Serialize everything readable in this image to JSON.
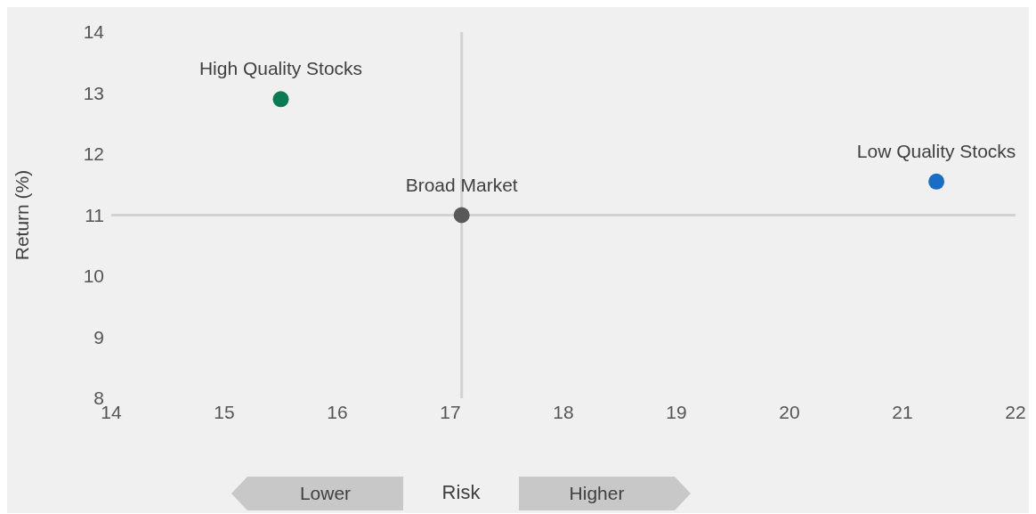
{
  "chart_data": {
    "type": "scatter",
    "xlabel": "Risk",
    "ylabel": "Return (%)",
    "xlim": [
      14,
      22
    ],
    "xticks": [
      14,
      15,
      16,
      17,
      18,
      19,
      20,
      21,
      22
    ],
    "ylim": [
      8,
      14
    ],
    "yticks": [
      8,
      9,
      10,
      11,
      12,
      13,
      14
    ],
    "series": [
      {
        "name": "High Quality Stocks",
        "color": "#0b7a52",
        "x": [
          15.5
        ],
        "values": [
          12.9
        ]
      },
      {
        "name": "Broad Market",
        "color": "#595959",
        "x": [
          17.1
        ],
        "values": [
          11.0
        ]
      },
      {
        "name": "Low Quality Stocks",
        "color": "#1a6dc2",
        "x": [
          21.3
        ],
        "values": [
          11.55
        ]
      }
    ],
    "ref_lines": [
      {
        "axis": "x",
        "value": 17.1,
        "color": "#d2d2d2"
      },
      {
        "axis": "y",
        "value": 11,
        "color": "#d2d2d2"
      }
    ],
    "annotations": [
      "Lower",
      "Higher"
    ]
  }
}
